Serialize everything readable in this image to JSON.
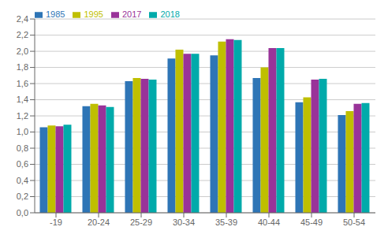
{
  "chart_data": {
    "type": "bar",
    "categories": [
      "-19",
      "20-24",
      "25-29",
      "30-34",
      "35-39",
      "40-44",
      "45-49",
      "50-54"
    ],
    "series": [
      {
        "name": "1985",
        "color": "#2E75B6",
        "values": [
          1.06,
          1.32,
          1.63,
          1.91,
          1.95,
          1.67,
          1.37,
          1.21
        ]
      },
      {
        "name": "1995",
        "color": "#BFBF00",
        "values": [
          1.08,
          1.35,
          1.67,
          2.02,
          2.12,
          1.8,
          1.43,
          1.26
        ]
      },
      {
        "name": "2017",
        "color": "#993399",
        "values": [
          1.07,
          1.33,
          1.66,
          1.97,
          2.15,
          2.04,
          1.65,
          1.35
        ]
      },
      {
        "name": "2018",
        "color": "#00AAAA",
        "values": [
          1.09,
          1.31,
          1.65,
          1.97,
          2.14,
          2.04,
          1.66,
          1.36
        ]
      }
    ],
    "ylim": [
      0,
      2.4
    ],
    "yticks": [
      {
        "value": 0.0,
        "label": "0,0"
      },
      {
        "value": 0.2,
        "label": "0,2"
      },
      {
        "value": 0.4,
        "label": "0,4"
      },
      {
        "value": 0.6,
        "label": "0,6"
      },
      {
        "value": 0.8,
        "label": "0,8"
      },
      {
        "value": 1.0,
        "label": "1,0"
      },
      {
        "value": 1.2,
        "label": "1,2"
      },
      {
        "value": 1.4,
        "label": "1,4"
      },
      {
        "value": 1.6,
        "label": "1,6"
      },
      {
        "value": 1.8,
        "label": "1,8"
      },
      {
        "value": 2.0,
        "label": "2,0"
      },
      {
        "value": 2.2,
        "label": "2,2"
      },
      {
        "value": 2.4,
        "label": "2,4"
      }
    ],
    "grid": true,
    "legend": "upper left"
  }
}
